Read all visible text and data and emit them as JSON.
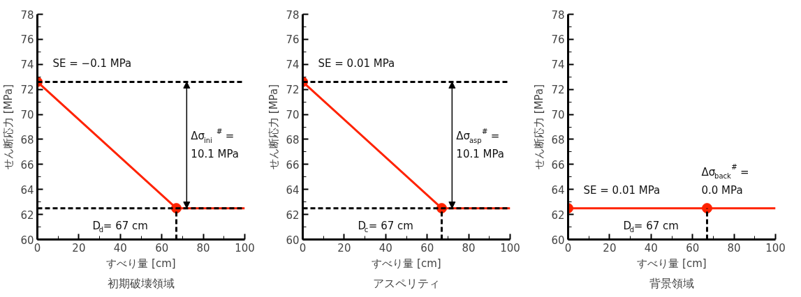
{
  "chart_data": [
    {
      "type": "line",
      "title": "初期破壊領域",
      "xlabel": "すべり量 [cm]",
      "ylabel": "せん断応力 [MPa]",
      "xlim": [
        0,
        100
      ],
      "ylim": [
        60,
        78
      ],
      "xticks": [
        0,
        20,
        40,
        60,
        80,
        100
      ],
      "yticks": [
        60,
        62,
        64,
        66,
        68,
        70,
        72,
        74,
        76,
        78
      ],
      "series": [
        {
          "type": "line",
          "color": "#ff2200",
          "x": [
            0,
            67,
            100
          ],
          "values": [
            72.6,
            62.5,
            62.5
          ],
          "marker": "none"
        },
        {
          "type": "scatter",
          "color": "#ff2200",
          "x": [
            0,
            67
          ],
          "values": [
            72.6,
            62.5
          ],
          "marker": "circle"
        }
      ],
      "ref_lines": [
        {
          "axis": "y",
          "value": 72.6,
          "color": "#000000",
          "line_style": "dashed"
        },
        {
          "axis": "y",
          "value": 62.5,
          "color": "#000000",
          "line_style": "dashed"
        },
        {
          "axis": "x",
          "value": 67,
          "color": "#000000",
          "line_style": "dashed"
        }
      ],
      "annotations": [
        "SE = −0.1 MPa",
        "Δσ$_{ini}$$^{#}$ =",
        "10.1 MPa",
        "D$_{d}$= 67 cm"
      ]
    },
    {
      "type": "line",
      "title": "アスペリティ",
      "xlabel": "すべり量 [cm]",
      "ylabel": "せん断応力 [MPa]",
      "xlim": [
        0,
        100
      ],
      "ylim": [
        60,
        78
      ],
      "xticks": [
        0,
        20,
        40,
        60,
        80,
        100
      ],
      "yticks": [
        60,
        62,
        64,
        66,
        68,
        70,
        72,
        74,
        76,
        78
      ],
      "series": [
        {
          "type": "line",
          "color": "#ff2200",
          "x": [
            0,
            67,
            100
          ],
          "values": [
            72.6,
            62.5,
            62.5
          ],
          "marker": "none"
        },
        {
          "type": "scatter",
          "color": "#ff2200",
          "x": [
            0,
            67
          ],
          "values": [
            72.6,
            62.5
          ],
          "marker": "circle"
        }
      ],
      "ref_lines": [
        {
          "axis": "y",
          "value": 72.6,
          "color": "#000000",
          "line_style": "dashed"
        },
        {
          "axis": "y",
          "value": 62.5,
          "color": "#000000",
          "line_style": "dashed"
        },
        {
          "axis": "x",
          "value": 67,
          "color": "#000000",
          "line_style": "dashed"
        }
      ],
      "annotations": [
        "SE = 0.01 MPa",
        "Δσ$_{asp}$$^{#}$ =",
        "10.1 MPa",
        "D$_{c}$= 67 cm"
      ]
    },
    {
      "type": "line",
      "title": "背景領域",
      "xlabel": "すべり量 [cm]",
      "ylabel": "せん断応力 [MPa]",
      "xlim": [
        0,
        100
      ],
      "ylim": [
        60,
        78
      ],
      "xticks": [
        0,
        20,
        40,
        60,
        80,
        100
      ],
      "yticks": [
        60,
        62,
        64,
        66,
        68,
        70,
        72,
        74,
        76,
        78
      ],
      "series": [
        {
          "type": "line",
          "color": "#ff2200",
          "x": [
            0,
            67,
            100
          ],
          "values": [
            62.5,
            62.5,
            62.5
          ],
          "marker": "none"
        },
        {
          "type": "scatter",
          "color": "#ff2200",
          "x": [
            0,
            67
          ],
          "values": [
            62.5,
            62.5
          ],
          "marker": "circle"
        }
      ],
      "ref_lines": [
        {
          "axis": "x",
          "value": 67,
          "color": "#000000",
          "line_style": "dashed"
        }
      ],
      "annotations": [
        "SE = 0.01 MPa",
        "Δσ$_{back}$$^{#}$ =",
        "0.0 MPa",
        "D$_{d}$= 67 cm"
      ]
    }
  ]
}
